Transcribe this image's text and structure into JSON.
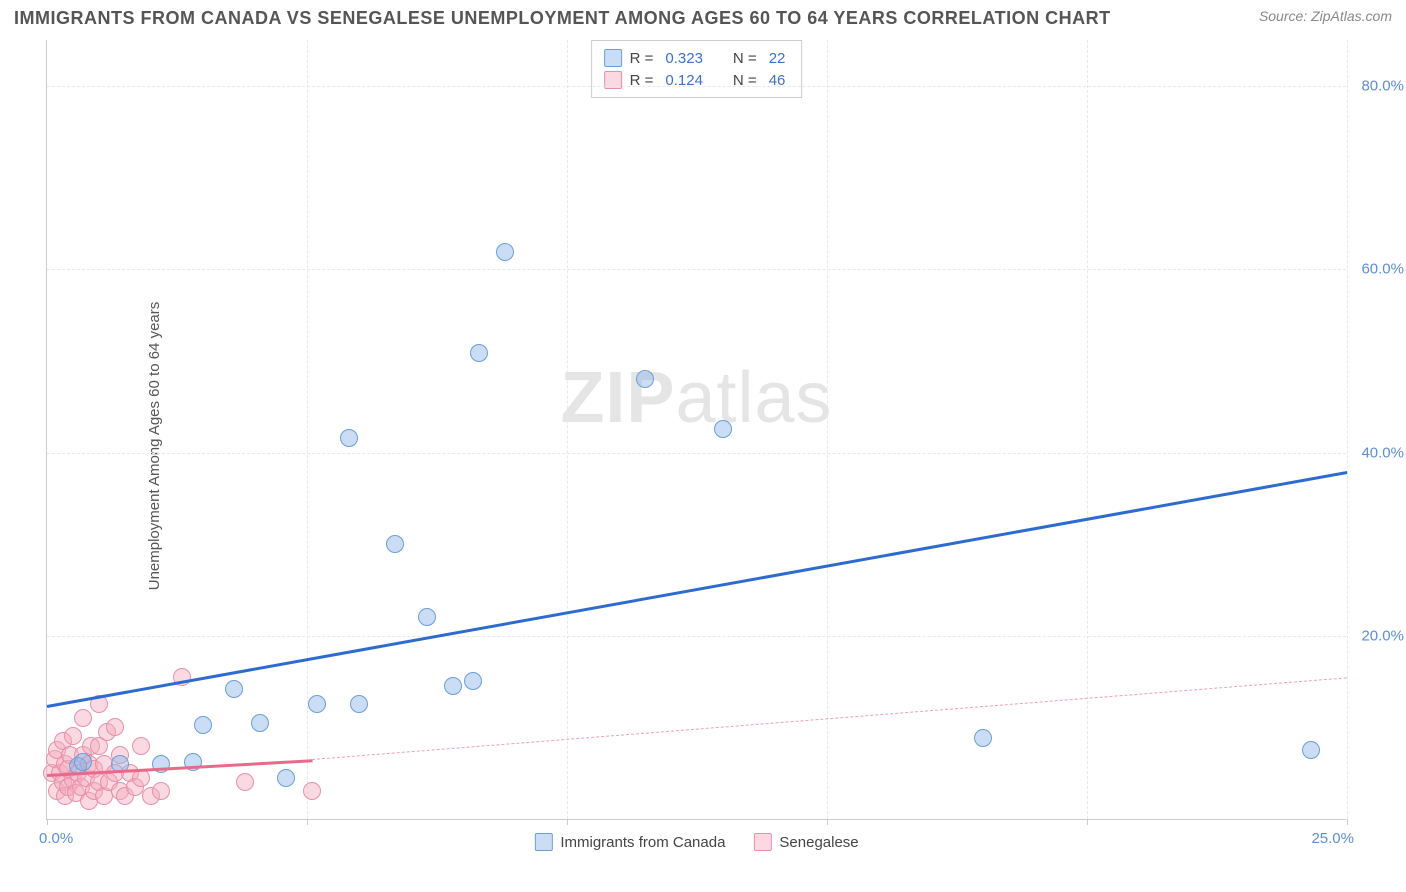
{
  "title": "IMMIGRANTS FROM CANADA VS SENEGALESE UNEMPLOYMENT AMONG AGES 60 TO 64 YEARS CORRELATION CHART",
  "source": "Source: ZipAtlas.com",
  "y_axis_label": "Unemployment Among Ages 60 to 64 years",
  "watermark_bold": "ZIP",
  "watermark_light": "atlas",
  "chart": {
    "xlim": [
      0,
      25
    ],
    "ylim": [
      0,
      85
    ],
    "x_ticks": [
      0,
      5,
      10,
      15,
      20,
      25
    ],
    "x_tick_labels_shown": {
      "0": "0.0%",
      "25": "25.0%"
    },
    "y_ticks": [
      20,
      40,
      60,
      80
    ],
    "y_tick_labels": {
      "20": "20.0%",
      "40": "40.0%",
      "60": "60.0%",
      "80": "80.0%"
    },
    "grid_color": "#e8e8e8",
    "axis_color": "#cccccc",
    "background": "#ffffff",
    "tick_label_color": "#5b8fd6"
  },
  "series": {
    "canada": {
      "label": "Immigrants from Canada",
      "color_fill": "rgba(138,180,230,0.45)",
      "color_stroke": "#6a9fd8",
      "marker_radius": 9,
      "trend_color": "#2e6bd0",
      "trend_width": 3,
      "r": "0.323",
      "n": "22",
      "trend": {
        "x1": 0,
        "y1": 12.5,
        "x2": 25,
        "y2": 38
      },
      "points": [
        {
          "x": 0.6,
          "y": 5.8
        },
        {
          "x": 0.7,
          "y": 6.2
        },
        {
          "x": 1.4,
          "y": 6.0
        },
        {
          "x": 2.2,
          "y": 6.0
        },
        {
          "x": 2.8,
          "y": 6.2
        },
        {
          "x": 3.0,
          "y": 10.2
        },
        {
          "x": 3.6,
          "y": 14.2
        },
        {
          "x": 4.1,
          "y": 10.5
        },
        {
          "x": 4.6,
          "y": 4.5
        },
        {
          "x": 5.2,
          "y": 12.5
        },
        {
          "x": 5.8,
          "y": 41.5
        },
        {
          "x": 6.0,
          "y": 12.5
        },
        {
          "x": 6.7,
          "y": 30.0
        },
        {
          "x": 7.3,
          "y": 22.0
        },
        {
          "x": 7.8,
          "y": 14.5
        },
        {
          "x": 8.2,
          "y": 15.0
        },
        {
          "x": 8.3,
          "y": 50.8
        },
        {
          "x": 8.8,
          "y": 61.8
        },
        {
          "x": 11.5,
          "y": 48.0
        },
        {
          "x": 13.0,
          "y": 42.5
        },
        {
          "x": 18.0,
          "y": 8.8
        },
        {
          "x": 24.3,
          "y": 7.5
        }
      ]
    },
    "senegalese": {
      "label": "Senegalese",
      "color_fill": "rgba(245,170,190,0.45)",
      "color_stroke": "#e890aa",
      "marker_radius": 9,
      "trend_color": "#e86a8a",
      "trend_width": 3,
      "trend_dash_color": "#f0a0b5",
      "r": "0.124",
      "n": "46",
      "trend_solid": {
        "x1": 0,
        "y1": 5.0,
        "x2": 5.1,
        "y2": 6.6
      },
      "trend_dash": {
        "x1": 5.1,
        "y1": 6.6,
        "x2": 25,
        "y2": 15.5
      },
      "points": [
        {
          "x": 0.1,
          "y": 5.0
        },
        {
          "x": 0.15,
          "y": 6.5
        },
        {
          "x": 0.2,
          "y": 3.0
        },
        {
          "x": 0.2,
          "y": 7.5
        },
        {
          "x": 0.25,
          "y": 5.0
        },
        {
          "x": 0.3,
          "y": 4.0
        },
        {
          "x": 0.3,
          "y": 8.5
        },
        {
          "x": 0.35,
          "y": 2.5
        },
        {
          "x": 0.35,
          "y": 6.0
        },
        {
          "x": 0.4,
          "y": 3.5
        },
        {
          "x": 0.4,
          "y": 5.5
        },
        {
          "x": 0.45,
          "y": 7.0
        },
        {
          "x": 0.5,
          "y": 4.2
        },
        {
          "x": 0.5,
          "y": 9.0
        },
        {
          "x": 0.55,
          "y": 2.8
        },
        {
          "x": 0.6,
          "y": 5.0
        },
        {
          "x": 0.65,
          "y": 3.5
        },
        {
          "x": 0.7,
          "y": 7.0
        },
        {
          "x": 0.7,
          "y": 11.0
        },
        {
          "x": 0.75,
          "y": 4.5
        },
        {
          "x": 0.8,
          "y": 2.0
        },
        {
          "x": 0.8,
          "y": 6.0
        },
        {
          "x": 0.85,
          "y": 8.0
        },
        {
          "x": 0.9,
          "y": 3.0
        },
        {
          "x": 0.9,
          "y": 5.5
        },
        {
          "x": 1.0,
          "y": 4.0
        },
        {
          "x": 1.0,
          "y": 8.0
        },
        {
          "x": 1.0,
          "y": 12.5
        },
        {
          "x": 1.1,
          "y": 2.5
        },
        {
          "x": 1.1,
          "y": 6.0
        },
        {
          "x": 1.15,
          "y": 9.5
        },
        {
          "x": 1.2,
          "y": 4.0
        },
        {
          "x": 1.3,
          "y": 5.0
        },
        {
          "x": 1.3,
          "y": 10.0
        },
        {
          "x": 1.4,
          "y": 3.0
        },
        {
          "x": 1.4,
          "y": 7.0
        },
        {
          "x": 1.5,
          "y": 2.5
        },
        {
          "x": 1.6,
          "y": 5.0
        },
        {
          "x": 1.7,
          "y": 3.5
        },
        {
          "x": 1.8,
          "y": 8.0
        },
        {
          "x": 1.8,
          "y": 4.5
        },
        {
          "x": 2.0,
          "y": 2.5
        },
        {
          "x": 2.2,
          "y": 3.0
        },
        {
          "x": 2.6,
          "y": 15.5
        },
        {
          "x": 3.8,
          "y": 4.0
        },
        {
          "x": 5.1,
          "y": 3.0
        }
      ]
    }
  },
  "legend_top": {
    "r_label": "R =",
    "n_label": "N ="
  }
}
